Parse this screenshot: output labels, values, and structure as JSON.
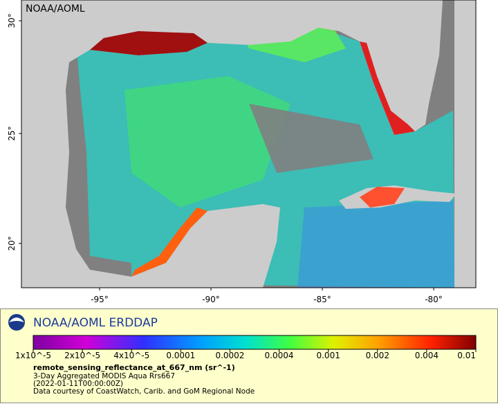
{
  "map": {
    "watermark": "NOAA/AOML",
    "lat_labels": [
      "30°",
      "25°",
      "20°"
    ],
    "lon_labels": [
      "-95°",
      "-90°",
      "-85°",
      "-80°"
    ]
  },
  "legend": {
    "title": "NOAA/AOML ERDDAP",
    "colorbar_labels": [
      "1x10^-5",
      "2x10^-5",
      "4x10^-5",
      "0.0001",
      "0.0002",
      "0.0004",
      "0.001",
      "0.002",
      "0.004",
      "0.01"
    ],
    "variable": "remote_sensing_reflectance_at_667_nm (sr^-1)",
    "lines": [
      "3-Day Aggregated MODIS Aqua Rrs667",
      "(2022-01-11T00:00:00Z)",
      "Data courtesy of CoastWatch, Carib. and GoM Regional Node"
    ]
  }
}
